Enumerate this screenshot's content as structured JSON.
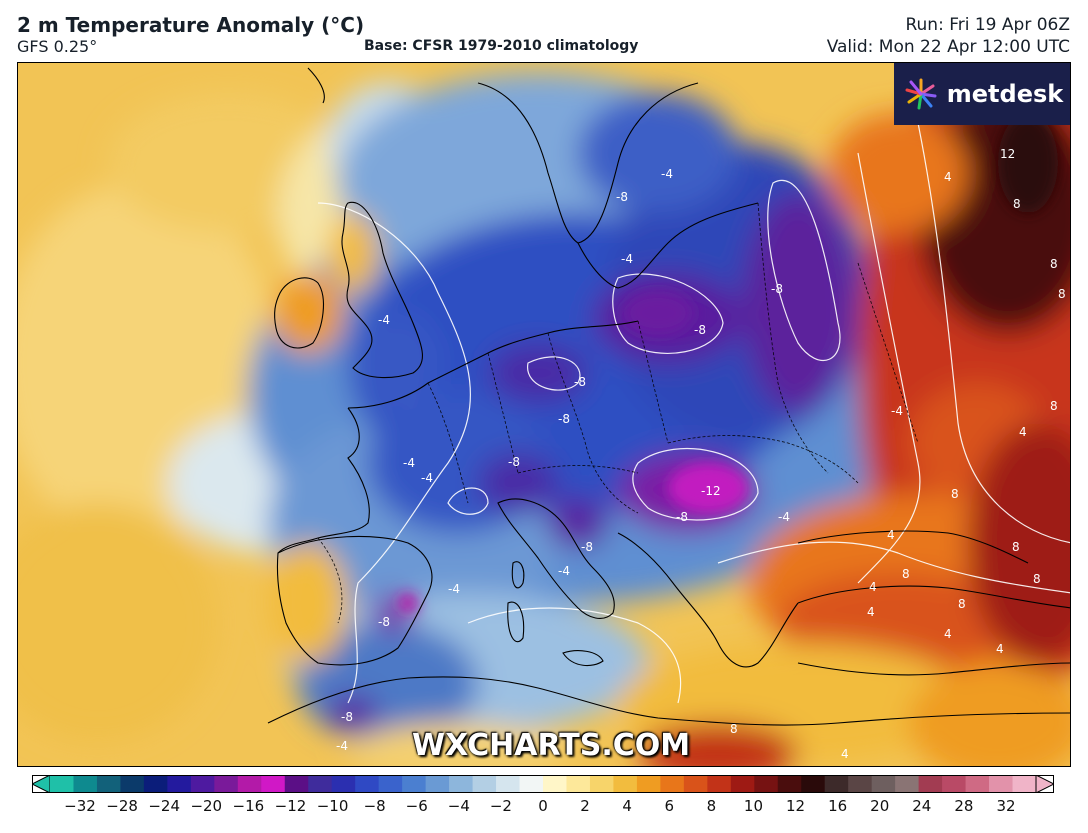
{
  "header": {
    "title": "2 m Temperature Anomaly (°C)",
    "model": "GFS 0.25°",
    "base": "Base: CFSR 1979-2010 climatology",
    "run": "Run: Fri 19 Apr 06Z",
    "valid": "Valid: Mon 22 Apr 12:00 UTC"
  },
  "logo": {
    "text": "metdesk"
  },
  "watermark": {
    "text": "WXCHARTS.COM"
  },
  "map": {
    "contour_labels": [
      "-8",
      "-8",
      "-8",
      "-8",
      "-8",
      "-8",
      "-8",
      "-8",
      "-8",
      "-8",
      "-12",
      "-4",
      "-4",
      "-4",
      "-4",
      "-4",
      "-4",
      "-4",
      "-4",
      "-4",
      "-4",
      "4",
      "4",
      "4",
      "4",
      "4",
      "4",
      "4",
      "4",
      "8",
      "8",
      "8",
      "8",
      "8",
      "8",
      "8",
      "8",
      "8",
      "8",
      "12"
    ]
  },
  "colorbar": {
    "ticks": [
      "−32",
      "−28",
      "−24",
      "−20",
      "−16",
      "−12",
      "−10",
      "−8",
      "−6",
      "−4",
      "−2",
      "0",
      "2",
      "4",
      "6",
      "8",
      "10",
      "12",
      "16",
      "20",
      "24",
      "28",
      "32"
    ],
    "colors": [
      "#1fc0a8",
      "#0e8a8f",
      "#12617a",
      "#0b3a6a",
      "#0b1d7a",
      "#231a9e",
      "#4e1aa0",
      "#7a1a9a",
      "#b31aa8",
      "#d018c6",
      "#5b0f86",
      "#3f2c9c",
      "#2b2fb0",
      "#2f49c4",
      "#3a63cc",
      "#4b7fd0",
      "#6a9ad4",
      "#8db6dc",
      "#b3cfe4",
      "#d5e5ee",
      "#f2f6f5",
      "#fff6c8",
      "#fde89a",
      "#f7d46a",
      "#f2bc3e",
      "#ef9c22",
      "#e8761a",
      "#d9531a",
      "#c23318",
      "#9e1a14",
      "#761212",
      "#4a0d0d",
      "#2a0a0a",
      "#3d2a2a",
      "#5a4545",
      "#6e5f5f",
      "#8a7474",
      "#a23c52",
      "#b94a66",
      "#cf6a84",
      "#e292aa",
      "#f0b4c8"
    ]
  }
}
